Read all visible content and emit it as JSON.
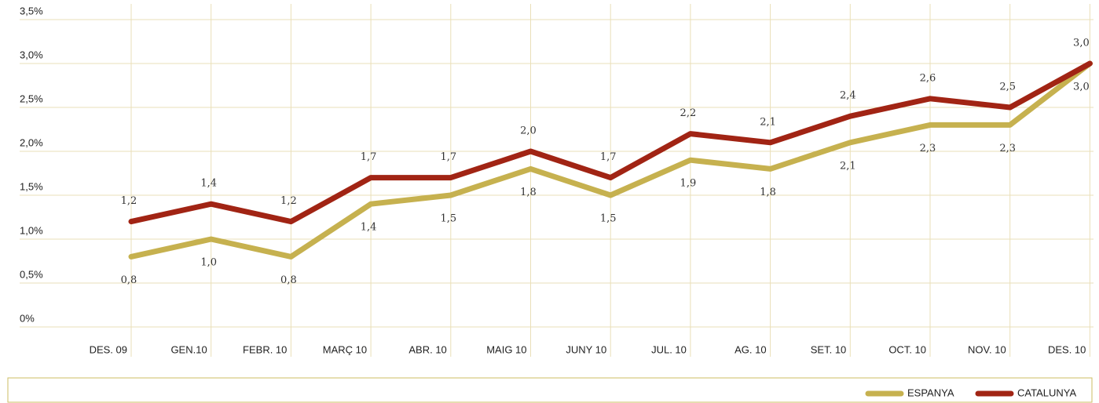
{
  "chart_data": {
    "type": "line",
    "categories": [
      "DES. 09",
      "GEN.10",
      "FEBR. 10",
      "MARÇ 10",
      "ABR. 10",
      "MAIG 10",
      "JUNY 10",
      "JUL. 10",
      "AG. 10",
      "SET. 10",
      "OCT. 10",
      "NOV. 10",
      "DES. 10"
    ],
    "series": [
      {
        "name": "ESPANYA",
        "color": "#c6b14f",
        "values": [
          0.8,
          1.0,
          0.8,
          1.4,
          1.5,
          1.8,
          1.5,
          1.9,
          1.8,
          2.1,
          2.3,
          2.3,
          3.0
        ],
        "value_labels": [
          "0,8",
          "1,0",
          "0,8",
          "1,4",
          "1,5",
          "1,8",
          "1,5",
          "1,9",
          "1,8",
          "2,1",
          "2,3",
          "2,3",
          "3,0"
        ]
      },
      {
        "name": "CATALUNYA",
        "color": "#a12414",
        "values": [
          1.2,
          1.4,
          1.2,
          1.7,
          1.7,
          2.0,
          1.7,
          2.2,
          2.1,
          2.4,
          2.6,
          2.5,
          3.0
        ],
        "value_labels": [
          "1,2",
          "1,4",
          "1,2",
          "1,7",
          "1,7",
          "2,0",
          "1,7",
          "2,2",
          "2,1",
          "2,4",
          "2,6",
          "2,5",
          "3,0"
        ]
      }
    ],
    "ylim": [
      0,
      3.5
    ],
    "yticks": [
      {
        "value": 0,
        "label": "0%"
      },
      {
        "value": 0.5,
        "label": "0,5%"
      },
      {
        "value": 1.0,
        "label": "1,0%"
      },
      {
        "value": 1.5,
        "label": "1,5%"
      },
      {
        "value": 2.0,
        "label": "2,0%"
      },
      {
        "value": 2.5,
        "label": "2,5%"
      },
      {
        "value": 3.0,
        "label": "3,0%"
      },
      {
        "value": 3.5,
        "label": "3,5%"
      }
    ],
    "grid": true,
    "legend": "bottom-right"
  }
}
